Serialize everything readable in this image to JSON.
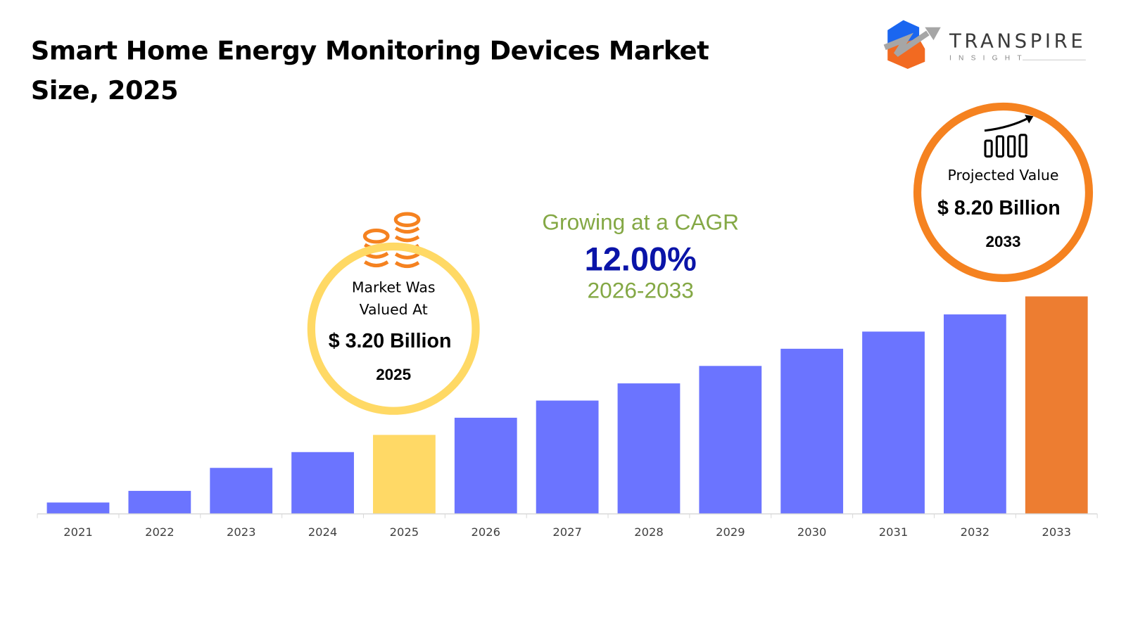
{
  "title": "Smart Home Energy Monitoring Devices Market Size, 2025",
  "logo": {
    "name": "TRANSPIRE",
    "sub": "INSIGHT"
  },
  "left_callout": {
    "line1": "Market Was",
    "line2": "Valued At",
    "value": "$ 3.20 Billion",
    "year": "2025",
    "icon": "coins-stack-icon",
    "ring_color": "#FFD965"
  },
  "cagr": {
    "label": "Growing at a CAGR",
    "value": "12.00%",
    "period": "2026-2033",
    "label_color": "#84A845",
    "value_color": "#0A14A8"
  },
  "right_callout": {
    "label": "Projected Value",
    "value": "$ 8.20 Billion",
    "year": "2033",
    "icon": "bar-chart-growth-icon",
    "ring_color": "#F58220"
  },
  "chart_data": {
    "type": "bar",
    "categories": [
      "2021",
      "2022",
      "2023",
      "2024",
      "2025",
      "2026",
      "2027",
      "2028",
      "2029",
      "2030",
      "2031",
      "2032",
      "2033"
    ],
    "values": [
      0.76,
      1.18,
      2.01,
      2.58,
      3.2,
      3.82,
      4.44,
      5.06,
      5.69,
      6.31,
      6.93,
      7.55,
      8.2
    ],
    "unit": "USD Billion",
    "ylim": [
      0.35,
      8.2
    ],
    "grid": false,
    "colors": {
      "default": "#6B74FF",
      "base_year": "#FFD966",
      "forecast_end": "#ED7D31",
      "axis": "#D9D9D9",
      "tick_label": "#404040"
    }
  }
}
